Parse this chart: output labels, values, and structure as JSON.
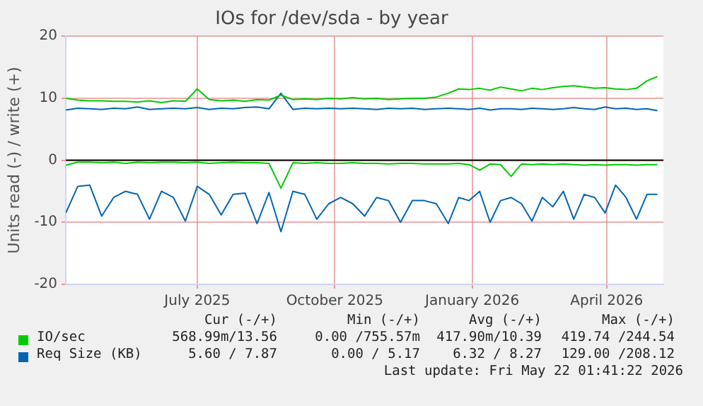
{
  "chart_data": {
    "type": "line",
    "title": "IOs for /dev/sda - by year",
    "ylabel": "Units read (-) / write (+)",
    "x": [
      "2025-04-04",
      "2025-04-12",
      "2025-04-20",
      "2025-04-28",
      "2025-05-06",
      "2025-05-14",
      "2025-05-22",
      "2025-05-30",
      "2025-06-07",
      "2025-06-15",
      "2025-06-23",
      "2025-07-01",
      "2025-07-09",
      "2025-07-17",
      "2025-07-25",
      "2025-08-02",
      "2025-08-10",
      "2025-08-18",
      "2025-08-26",
      "2025-09-03",
      "2025-09-11",
      "2025-09-19",
      "2025-09-27",
      "2025-10-05",
      "2025-10-13",
      "2025-10-21",
      "2025-10-29",
      "2025-11-06",
      "2025-11-14",
      "2025-11-22",
      "2025-11-30",
      "2025-12-08",
      "2025-12-16",
      "2025-12-23",
      "2025-12-30",
      "2026-01-06",
      "2026-01-13",
      "2026-01-20",
      "2026-01-27",
      "2026-02-03",
      "2026-02-10",
      "2026-02-17",
      "2026-02-24",
      "2026-03-03",
      "2026-03-10",
      "2026-03-17",
      "2026-03-24",
      "2026-03-31",
      "2026-04-07",
      "2026-04-14",
      "2026-04-21",
      "2026-04-28",
      "2026-05-05"
    ],
    "series": [
      {
        "name": "IO/sec",
        "color": "#00cc00",
        "values": [
          10,
          9.7,
          9.6,
          9.6,
          9.5,
          9.5,
          9.4,
          9.6,
          9.3,
          9.6,
          9.5,
          11.5,
          9.8,
          9.6,
          9.7,
          9.5,
          9.8,
          9.7,
          10.5,
          9.8,
          9.9,
          9.8,
          10,
          9.9,
          10.1,
          9.9,
          10,
          9.8,
          9.9,
          10,
          10,
          10.2,
          10.8,
          11.5,
          11.4,
          11.6,
          11.3,
          11.8,
          11.5,
          11.2,
          11.6,
          11.4,
          11.7,
          11.9,
          12,
          11.8,
          11.6,
          11.7,
          11.5,
          11.4,
          11.6,
          12.8,
          13.5
        ]
      },
      {
        "color": "#00cc00",
        "values": [
          -0.8,
          -0.3,
          -0.3,
          -0.4,
          -0.3,
          -0.5,
          -0.3,
          -0.4,
          -0.3,
          -0.3,
          -0.4,
          -0.3,
          -0.5,
          -0.4,
          -0.3,
          -0.4,
          -0.4,
          -0.5,
          -4.5,
          -0.4,
          -0.5,
          -0.4,
          -0.5,
          -0.5,
          -0.4,
          -0.5,
          -0.5,
          -0.6,
          -0.5,
          -0.5,
          -0.6,
          -0.6,
          -0.6,
          -0.5,
          -0.7,
          -1.6,
          -0.6,
          -0.7,
          -2.6,
          -0.6,
          -0.7,
          -0.6,
          -0.7,
          -0.6,
          -0.7,
          -0.8,
          -0.7,
          -0.8,
          -0.7,
          -0.7,
          -0.8,
          -0.7,
          -0.7
        ]
      },
      {
        "name": "Req Size (KB)",
        "color": "#0066b3",
        "values": [
          8.1,
          8.4,
          8.3,
          8.2,
          8.4,
          8.3,
          8.6,
          8.2,
          8.3,
          8.4,
          8.3,
          8.5,
          8.2,
          8.4,
          8.3,
          8.5,
          8.6,
          8.3,
          10.8,
          8.2,
          8.4,
          8.3,
          8.4,
          8.3,
          8.4,
          8.3,
          8.2,
          8.4,
          8.3,
          8.4,
          8.2,
          8.3,
          8.4,
          8.3,
          8.2,
          8.4,
          8.1,
          8.3,
          8.3,
          8.2,
          8.4,
          8.3,
          8.2,
          8.3,
          8.5,
          8.3,
          8.2,
          8.6,
          8.3,
          8.4,
          8.2,
          8.3,
          8
        ]
      },
      {
        "color": "#0066b3",
        "values": [
          -8.5,
          -4.2,
          -4,
          -9,
          -6,
          -5,
          -5.5,
          -9.5,
          -5,
          -6,
          -9.8,
          -4.2,
          -5.5,
          -8.8,
          -5.5,
          -5.3,
          -10.2,
          -5.2,
          -11.5,
          -5,
          -5.5,
          -9.5,
          -7,
          -6,
          -7,
          -9,
          -6,
          -6.5,
          -10,
          -6.5,
          -6.5,
          -7,
          -10.2,
          -6,
          -6.5,
          -5,
          -10,
          -6.5,
          -6,
          -7,
          -9.8,
          -6,
          -7.5,
          -5,
          -9.5,
          -5.5,
          -6,
          -8.5,
          -4,
          -6,
          -9.5,
          -5.5,
          -5.5
        ]
      }
    ],
    "xlim": [
      "2025-04-04",
      "2026-05-09"
    ],
    "xticks": [
      {
        "value": "2025-07-01",
        "label": "July 2025"
      },
      {
        "value": "2025-10-01",
        "label": "October 2025"
      },
      {
        "value": "2026-01-01",
        "label": "January 2026"
      },
      {
        "value": "2026-04-01",
        "label": "April 2026"
      }
    ],
    "ylim": [
      -20,
      20
    ],
    "yticks": [
      -20,
      -10,
      0,
      10,
      20
    ],
    "ref_lines": [
      {
        "axis": "y",
        "value": 0,
        "color": "#000000"
      }
    ],
    "grid": true,
    "legend": "bottom",
    "marker": "none",
    "line_style": "solid",
    "annotations": [
      "Cur (-/+)",
      "Min (-/+)",
      "Avg (-/+)",
      "Max (-/+)",
      "568.99m/13.56",
      "0.00 /755.57m",
      "417.90m/10.39",
      "419.74 /244.54",
      "5.60 / 7.87",
      "0.00 / 5.17",
      "6.32 / 8.27",
      "129.00 /208.12",
      "Last update: Fri May 22 01:41:22 2026"
    ]
  }
}
